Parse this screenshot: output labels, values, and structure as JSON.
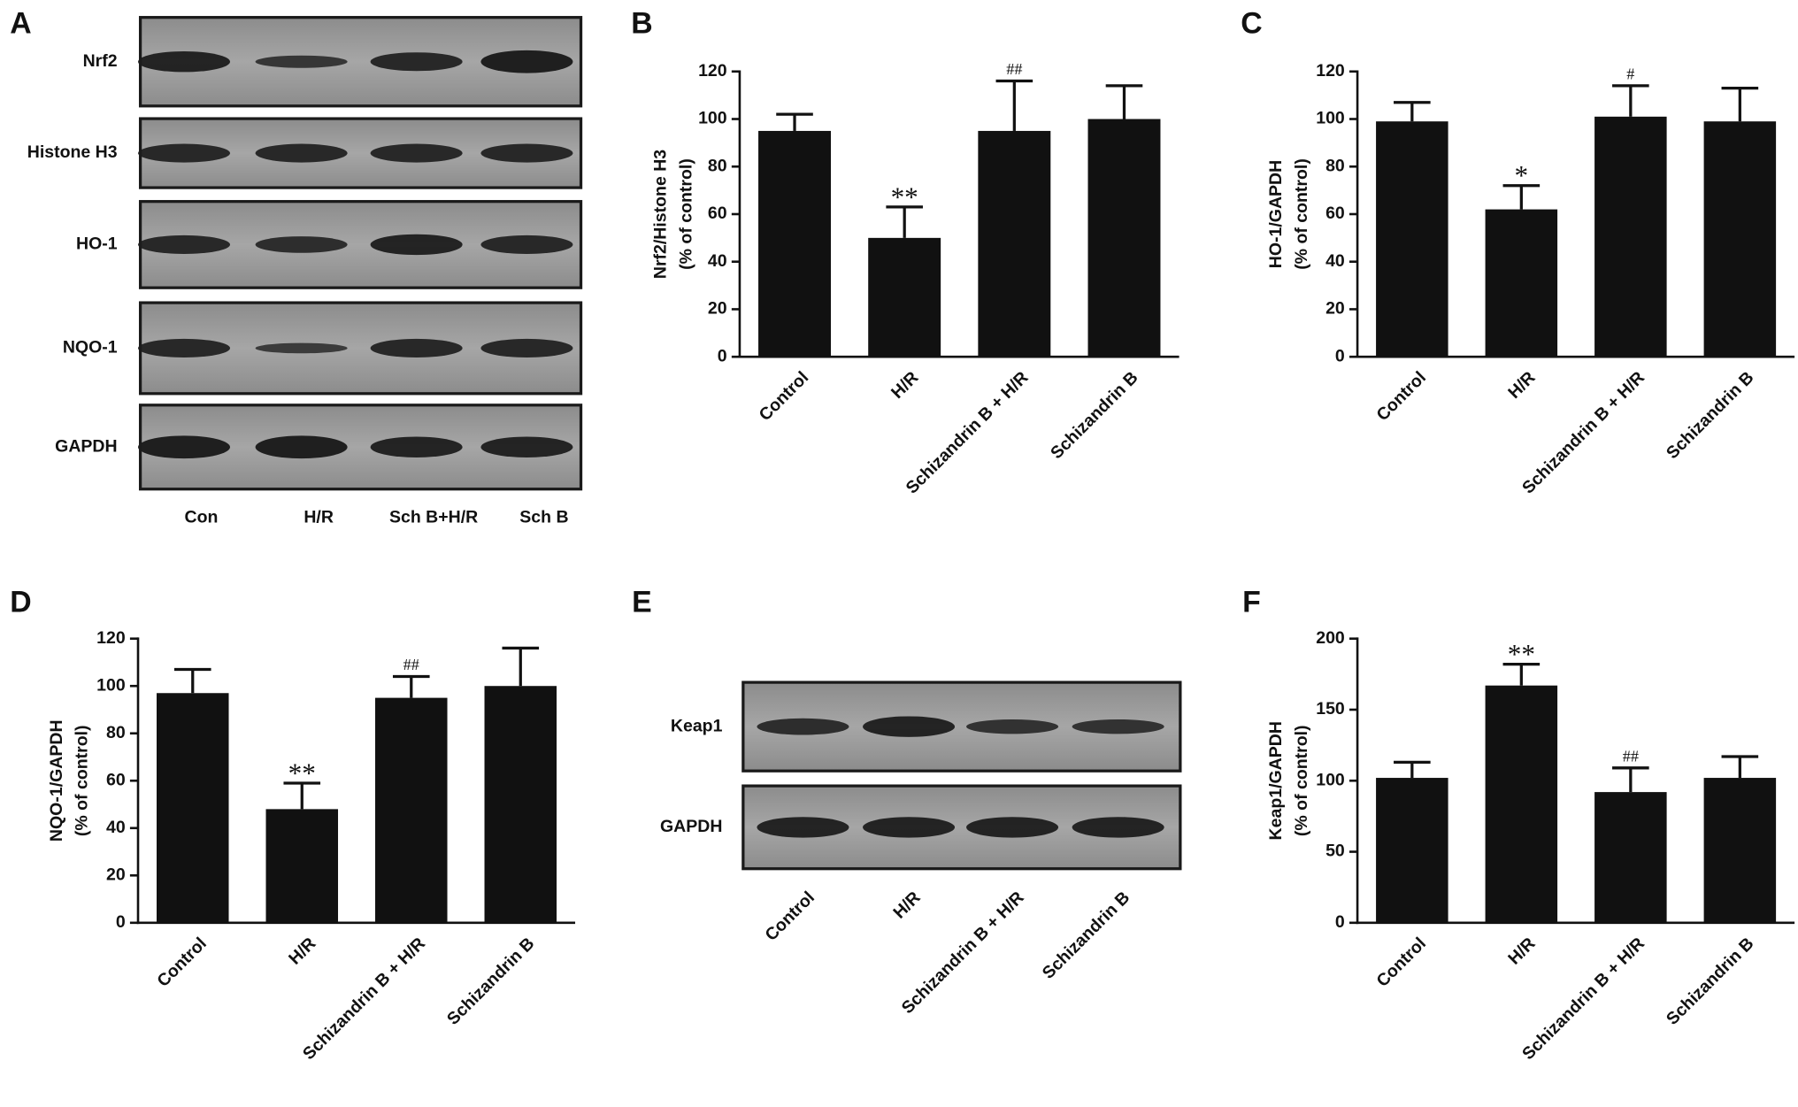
{
  "blots": [
    {
      "panel": "A",
      "rows": [
        "Nrf2",
        "Histone H3",
        "HO-1",
        "NQO-1",
        "GAPDH"
      ],
      "lanes": [
        "Con",
        "H/R",
        "Sch B+H/R",
        "Sch B"
      ]
    },
    {
      "panel": "E",
      "rows": [
        "Keap1",
        "GAPDH"
      ],
      "lanes": [
        "Control",
        "H/R",
        "Schizandrin B + H/R",
        "Schizandrin B"
      ]
    }
  ],
  "chart_data": [
    {
      "type": "bar",
      "panel": "B",
      "ylabel": [
        "Nrf2/Histone H3",
        "(% of control)"
      ],
      "categories": [
        "Control",
        "H/R",
        "Schizandrin B + H/R",
        "Schizandrin B"
      ],
      "values": [
        95,
        50,
        95,
        100
      ],
      "errors": [
        7,
        13,
        21,
        14
      ],
      "annotations": [
        null,
        "**",
        "##",
        null
      ],
      "color": "#111111",
      "ylim": [
        0,
        120
      ],
      "yticks": [
        0,
        20,
        40,
        60,
        80,
        100,
        120
      ]
    },
    {
      "type": "bar",
      "panel": "C",
      "ylabel": [
        "HO-1/GAPDH",
        "(% of control)"
      ],
      "categories": [
        "Control",
        "H/R",
        "Schizandrin B + H/R",
        "Schizandrin B"
      ],
      "values": [
        99,
        62,
        101,
        99
      ],
      "errors": [
        8,
        10,
        13,
        14
      ],
      "annotations": [
        null,
        "*",
        "#",
        null
      ],
      "color": "#111111",
      "ylim": [
        0,
        120
      ],
      "yticks": [
        0,
        20,
        40,
        60,
        80,
        100,
        120
      ]
    },
    {
      "type": "bar",
      "panel": "D",
      "ylabel": [
        "NQO-1/GAPDH",
        "(% of control)"
      ],
      "categories": [
        "Control",
        "H/R",
        "Schizandrin B + H/R",
        "Schizandrin B"
      ],
      "values": [
        97,
        48,
        95,
        100
      ],
      "errors": [
        10,
        11,
        9,
        16
      ],
      "annotations": [
        null,
        "**",
        "##",
        null
      ],
      "color": "#111111",
      "ylim": [
        0,
        120
      ],
      "yticks": [
        0,
        20,
        40,
        60,
        80,
        100,
        120
      ]
    },
    {
      "type": "bar",
      "panel": "F",
      "ylabel": [
        "Keap1/GAPDH",
        "(% of control)"
      ],
      "categories": [
        "Control",
        "H/R",
        "Schizandrin B + H/R",
        "Schizandrin B"
      ],
      "values": [
        102,
        167,
        92,
        102
      ],
      "errors": [
        11,
        15,
        17,
        15
      ],
      "annotations": [
        null,
        "**",
        "##",
        null
      ],
      "color": "#111111",
      "ylim": [
        0,
        200
      ],
      "yticks": [
        0,
        50,
        100,
        150,
        200
      ]
    }
  ]
}
